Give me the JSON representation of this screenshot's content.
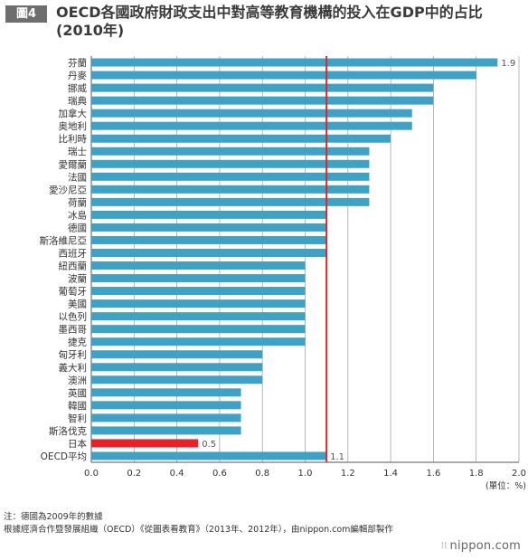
{
  "header": {
    "figure_tag": "圖4",
    "title": "OECD各國政府財政支出中對高等教育機構的投入在GDP中的占比(2010年)"
  },
  "chart_data": {
    "type": "bar",
    "orientation": "horizontal",
    "categories": [
      "芬蘭",
      "丹麥",
      "挪威",
      "瑞典",
      "加拿大",
      "奥地利",
      "比利時",
      "瑞士",
      "愛爾蘭",
      "法國",
      "愛沙尼亞",
      "荷蘭",
      "冰島",
      "德國",
      "斯洛維尼亞",
      "西班牙",
      "紐西蘭",
      "波蘭",
      "葡萄牙",
      "美國",
      "以色列",
      "墨西哥",
      "捷克",
      "匈牙利",
      "義大利",
      "澳洲",
      "英國",
      "韓國",
      "智利",
      "斯洛伐克",
      "日本",
      "OECD平均"
    ],
    "values": [
      1.9,
      1.8,
      1.6,
      1.6,
      1.5,
      1.5,
      1.4,
      1.3,
      1.3,
      1.3,
      1.3,
      1.3,
      1.1,
      1.1,
      1.1,
      1.1,
      1.0,
      1.0,
      1.0,
      1.0,
      1.0,
      1.0,
      1.0,
      0.8,
      0.8,
      0.8,
      0.7,
      0.7,
      0.7,
      0.7,
      0.5,
      1.1
    ],
    "data_labels": {
      "0": "1.9",
      "30": "0.5",
      "31": "1.1"
    },
    "highlight_index": 30,
    "reference_value": 1.1,
    "xlim": [
      0,
      2.0
    ],
    "x_ticks": [
      "0.0",
      "0.2",
      "0.4",
      "0.6",
      "0.8",
      "1.0",
      "1.2",
      "1.4",
      "1.6",
      "1.8",
      "2.0"
    ],
    "unit_label": "(單位：%)",
    "grid": true,
    "colors": {
      "bar": "#3fa1c4",
      "highlight": "#e8202a",
      "reference_line": "#d7282f",
      "grid": "#9a9a9a"
    }
  },
  "footer": {
    "note": "注：德國為2009年的數據",
    "source": "根據經濟合作暨發展組織（OECD）《從圖表看教育》（2013年、2012年），由nippon.com編輯部製作",
    "brand": "nippon.com",
    "brand_mark": "⁝⁝"
  }
}
